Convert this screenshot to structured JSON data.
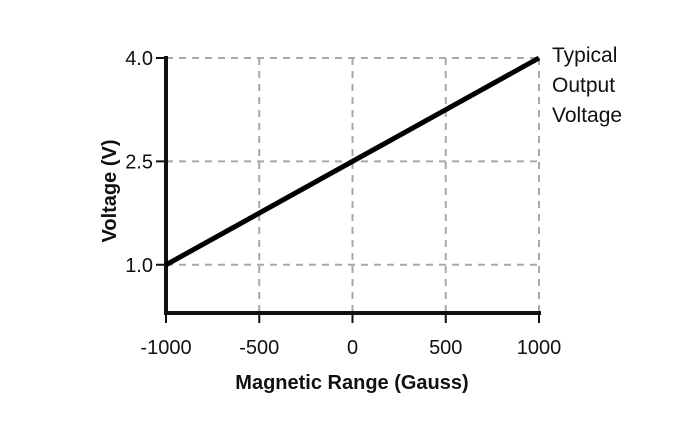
{
  "chart_data": {
    "type": "line",
    "title": "",
    "xlabel": "Magnetic Range (Gauss)",
    "ylabel": "Voltage (V)",
    "xlim": [
      -1000,
      1000
    ],
    "ylim": [
      0.3,
      4.0
    ],
    "x_ticks": [
      -1000,
      -500,
      0,
      500,
      1000
    ],
    "x_tick_labels": [
      "-1000",
      "-500",
      "0",
      "500",
      "1000"
    ],
    "y_ticks": [
      1.0,
      2.5,
      4.0
    ],
    "y_tick_labels": [
      "1.0",
      "2.5",
      "4.0"
    ],
    "grid": true,
    "series": [
      {
        "name": "Typical Output Voltage",
        "name_lines": [
          "Typical",
          "Output",
          "Voltage"
        ],
        "x": [
          -1000,
          1000
        ],
        "y": [
          1.0,
          4.0
        ]
      }
    ],
    "colors": {
      "series": "#000000",
      "grid": "#a8a8a8",
      "axis": "#111111"
    }
  }
}
